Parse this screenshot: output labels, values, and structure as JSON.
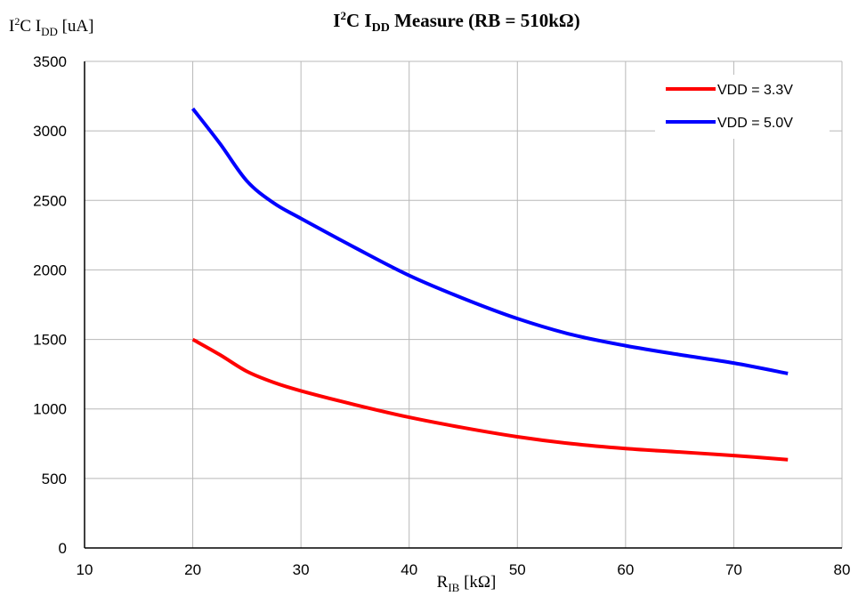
{
  "chart_data": {
    "type": "line",
    "title": {
      "main": "I",
      "sup": "2",
      "mid": "C I",
      "sub": "DD",
      "rest": " Measure (RB = 510kΩ)"
    },
    "ylabel": {
      "main": "I",
      "sup": "2",
      "mid": "C I",
      "sub": "DD",
      "rest": " [uA]"
    },
    "xlabel": {
      "main": "R",
      "sub": "IB",
      "rest": " [kΩ]"
    },
    "xlim": [
      10,
      80
    ],
    "ylim": [
      0,
      3500
    ],
    "xticks": [
      "10",
      "20",
      "30",
      "40",
      "50",
      "60",
      "70",
      "80"
    ],
    "yticks": [
      "0",
      "500",
      "1000",
      "1500",
      "2000",
      "2500",
      "3000",
      "3500"
    ],
    "grid": true,
    "legend_position": "top-right",
    "series": [
      {
        "name": "VDD = 3.3V",
        "color": "#ff0000",
        "x": [
          20,
          22.5,
          25,
          27.5,
          30,
          35,
          40,
          45,
          50,
          55,
          60,
          65,
          70,
          75
        ],
        "y": [
          1500,
          1390,
          1270,
          1190,
          1130,
          1030,
          940,
          865,
          800,
          750,
          715,
          690,
          665,
          635
        ]
      },
      {
        "name": "VDD = 5.0V",
        "color": "#0000ff",
        "x": [
          20,
          22.5,
          25,
          27.5,
          30,
          35,
          40,
          45,
          50,
          55,
          60,
          65,
          70,
          75
        ],
        "y": [
          3160,
          2910,
          2640,
          2480,
          2370,
          2160,
          1960,
          1795,
          1650,
          1535,
          1455,
          1390,
          1330,
          1255
        ]
      }
    ]
  }
}
